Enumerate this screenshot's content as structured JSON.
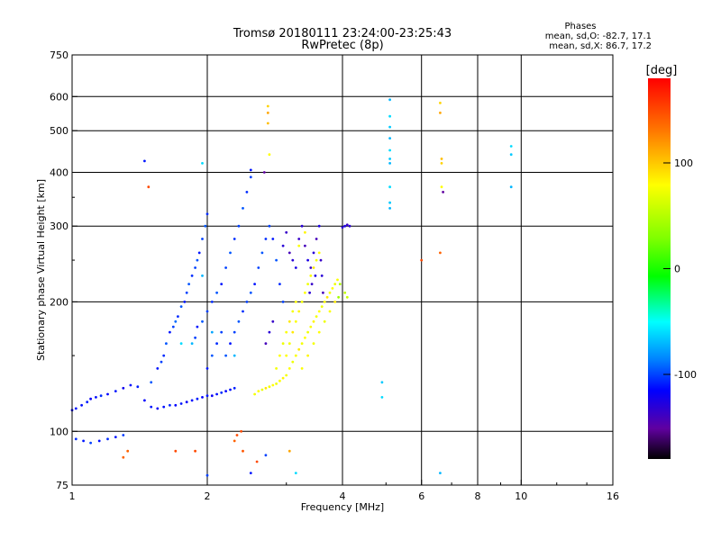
{
  "chart_data": {
    "type": "scatter",
    "title": "Tromsø 20180111 23:24:00-23:25:43",
    "subtitle": "RwPretec (8p)",
    "xlabel": "Frequency [MHz]",
    "ylabel": "Stationary phase Virtual Height [km]",
    "x_scale": "log",
    "y_scale": "log",
    "xlim": [
      1,
      16
    ],
    "ylim": [
      75,
      750
    ],
    "grid": true,
    "x_ticks": [
      1,
      2,
      4,
      6,
      8,
      10,
      16
    ],
    "x_tick_labels": [
      "1",
      "2",
      "4",
      "6",
      "8",
      "10",
      "16"
    ],
    "y_ticks": [
      75,
      100,
      200,
      300,
      400,
      500,
      600,
      750
    ],
    "y_tick_labels": [
      "75",
      "100",
      "200",
      "300",
      "400",
      "500",
      "600",
      "750"
    ],
    "legend_title": "Phases",
    "legend_lines": [
      "mean, sd,O: -82.7, 17.1",
      "mean, sd,X:  86.7, 17.2"
    ],
    "colorbar": {
      "label": "[deg]",
      "range": [
        -180,
        180
      ],
      "tick_values": [
        100,
        0,
        -100
      ],
      "tick_labels": [
        "100",
        "0",
        "-100"
      ]
    },
    "series": [
      {
        "points": [
          [
            1.0,
            112,
            -115
          ],
          [
            1.02,
            113,
            -110
          ],
          [
            1.05,
            115,
            -112
          ],
          [
            1.08,
            117,
            -108
          ],
          [
            1.1,
            119,
            -118
          ],
          [
            1.13,
            120,
            -112
          ],
          [
            1.16,
            121,
            -105
          ],
          [
            1.2,
            122,
            -115
          ],
          [
            1.25,
            124,
            -110
          ],
          [
            1.3,
            126,
            -120
          ],
          [
            1.35,
            128,
            -112
          ],
          [
            1.4,
            127,
            -108
          ],
          [
            1.45,
            118,
            -115
          ],
          [
            1.5,
            114,
            -110
          ],
          [
            1.55,
            113,
            -118
          ],
          [
            1.6,
            114,
            -112
          ],
          [
            1.65,
            115,
            -106
          ],
          [
            1.7,
            115,
            -115
          ],
          [
            1.75,
            116,
            -110
          ],
          [
            1.8,
            117,
            -118
          ],
          [
            1.85,
            118,
            -112
          ],
          [
            1.9,
            119,
            -108
          ],
          [
            1.95,
            120,
            -115
          ],
          [
            2.0,
            121,
            -110
          ],
          [
            2.05,
            121,
            -118
          ],
          [
            2.1,
            122,
            -112
          ],
          [
            2.15,
            123,
            -105
          ],
          [
            2.2,
            124,
            -115
          ],
          [
            2.25,
            125,
            -112
          ],
          [
            2.3,
            126,
            -108
          ],
          [
            1.02,
            96,
            -105
          ],
          [
            1.06,
            95,
            -110
          ],
          [
            1.1,
            94,
            -100
          ],
          [
            1.15,
            95,
            -112
          ],
          [
            1.2,
            96,
            -105
          ],
          [
            1.25,
            97,
            -110
          ],
          [
            1.3,
            98,
            -102
          ]
        ]
      },
      {
        "points": [
          [
            1.5,
            130,
            -95
          ],
          [
            1.55,
            140,
            -110
          ],
          [
            1.58,
            145,
            -100
          ],
          [
            1.6,
            150,
            -105
          ],
          [
            1.62,
            160,
            -95
          ],
          [
            1.65,
            170,
            -110
          ],
          [
            1.68,
            175,
            -100
          ],
          [
            1.7,
            180,
            -90
          ],
          [
            1.72,
            185,
            -105
          ],
          [
            1.75,
            195,
            -95
          ],
          [
            1.78,
            200,
            -110
          ],
          [
            1.8,
            210,
            -100
          ],
          [
            1.82,
            220,
            -95
          ],
          [
            1.85,
            230,
            -105
          ],
          [
            1.88,
            240,
            -100
          ],
          [
            1.9,
            250,
            -95
          ],
          [
            1.92,
            260,
            -110
          ],
          [
            1.95,
            280,
            -100
          ],
          [
            1.98,
            300,
            -95
          ],
          [
            2.0,
            320,
            -105
          ],
          [
            1.85,
            160,
            -70
          ],
          [
            1.88,
            165,
            -100
          ],
          [
            1.9,
            175,
            -110
          ],
          [
            1.95,
            180,
            -95
          ],
          [
            2.0,
            190,
            -100
          ],
          [
            2.05,
            200,
            -105
          ],
          [
            2.1,
            210,
            -95
          ],
          [
            2.15,
            220,
            -110
          ],
          [
            2.2,
            240,
            -100
          ],
          [
            2.25,
            260,
            -95
          ],
          [
            2.3,
            280,
            -105
          ],
          [
            2.35,
            300,
            -100
          ],
          [
            2.4,
            330,
            -95
          ],
          [
            2.45,
            360,
            -105
          ],
          [
            2.5,
            390,
            -100
          ],
          [
            2.0,
            140,
            -110
          ],
          [
            2.05,
            150,
            -95
          ],
          [
            2.1,
            160,
            -105
          ],
          [
            2.15,
            170,
            -100
          ],
          [
            2.2,
            150,
            -95
          ],
          [
            2.25,
            160,
            -110
          ],
          [
            2.3,
            170,
            -100
          ],
          [
            2.35,
            180,
            -95
          ],
          [
            2.4,
            190,
            -105
          ],
          [
            2.45,
            200,
            -100
          ],
          [
            2.5,
            210,
            -95
          ],
          [
            2.55,
            220,
            -110
          ],
          [
            2.6,
            240,
            -100
          ],
          [
            2.65,
            260,
            -95
          ],
          [
            2.7,
            280,
            -105
          ],
          [
            2.75,
            300,
            -100
          ],
          [
            2.8,
            280,
            -110
          ],
          [
            2.85,
            250,
            -95
          ],
          [
            2.9,
            220,
            -105
          ],
          [
            2.95,
            200,
            -100
          ],
          [
            1.95,
            230,
            -70
          ],
          [
            2.05,
            170,
            -75
          ],
          [
            1.75,
            160,
            -60
          ],
          [
            2.3,
            150,
            -70
          ]
        ]
      },
      {
        "points": [
          [
            2.95,
            270,
            -130
          ],
          [
            3.0,
            290,
            -135
          ],
          [
            3.05,
            260,
            -140
          ],
          [
            3.1,
            250,
            -130
          ],
          [
            3.15,
            240,
            -125
          ],
          [
            3.2,
            280,
            -135
          ],
          [
            3.25,
            300,
            -130
          ],
          [
            3.3,
            270,
            -140
          ],
          [
            3.35,
            250,
            -125
          ],
          [
            3.4,
            240,
            -135
          ],
          [
            3.45,
            260,
            -130
          ],
          [
            3.5,
            280,
            -140
          ],
          [
            3.55,
            300,
            -125
          ],
          [
            3.58,
            250,
            -135
          ],
          [
            3.6,
            230,
            -130
          ],
          [
            3.62,
            210,
            -140
          ],
          [
            3.48,
            230,
            -125
          ],
          [
            3.42,
            220,
            -135
          ],
          [
            3.38,
            210,
            -130
          ],
          [
            4.0,
            298,
            -130
          ],
          [
            4.05,
            300,
            -125
          ],
          [
            4.1,
            302,
            -135
          ],
          [
            4.15,
            300,
            -130
          ],
          [
            2.7,
            160,
            -140
          ],
          [
            2.75,
            170,
            -130
          ],
          [
            2.8,
            180,
            -135
          ]
        ]
      },
      {
        "points": [
          [
            2.55,
            122,
            95
          ],
          [
            2.6,
            124,
            100
          ],
          [
            2.65,
            125,
            90
          ],
          [
            2.7,
            126,
            105
          ],
          [
            2.75,
            127,
            95
          ],
          [
            2.8,
            128,
            100
          ],
          [
            2.85,
            129,
            92
          ],
          [
            2.9,
            131,
            98
          ],
          [
            2.95,
            133,
            102
          ],
          [
            3.0,
            135,
            95
          ],
          [
            3.05,
            140,
            100
          ],
          [
            3.1,
            145,
            92
          ],
          [
            3.15,
            150,
            98
          ],
          [
            3.2,
            155,
            105
          ],
          [
            3.25,
            160,
            95
          ],
          [
            3.3,
            165,
            100
          ],
          [
            3.35,
            170,
            92
          ],
          [
            3.4,
            175,
            98
          ],
          [
            3.45,
            180,
            102
          ],
          [
            3.5,
            185,
            95
          ],
          [
            3.55,
            190,
            100
          ],
          [
            3.6,
            195,
            92
          ],
          [
            3.65,
            200,
            98
          ],
          [
            3.7,
            205,
            105
          ],
          [
            3.75,
            210,
            95
          ],
          [
            3.8,
            215,
            100
          ],
          [
            3.85,
            220,
            92
          ],
          [
            3.9,
            225,
            98
          ],
          [
            3.0,
            150,
            100
          ],
          [
            3.05,
            160,
            95
          ],
          [
            3.1,
            170,
            105
          ],
          [
            3.15,
            180,
            98
          ],
          [
            3.2,
            190,
            102
          ],
          [
            3.25,
            200,
            95
          ],
          [
            3.3,
            210,
            100
          ],
          [
            3.35,
            220,
            92
          ],
          [
            3.4,
            230,
            98
          ],
          [
            3.45,
            240,
            105
          ],
          [
            3.5,
            250,
            95
          ],
          [
            3.55,
            260,
            100
          ],
          [
            3.2,
            270,
            98
          ],
          [
            3.3,
            290,
            102
          ],
          [
            2.85,
            140,
            95
          ],
          [
            2.9,
            150,
            100
          ],
          [
            2.95,
            160,
            92
          ],
          [
            3.0,
            170,
            98
          ],
          [
            3.05,
            180,
            105
          ],
          [
            3.1,
            190,
            95
          ],
          [
            3.15,
            200,
            100
          ],
          [
            3.25,
            140,
            98
          ],
          [
            3.35,
            150,
            102
          ],
          [
            3.45,
            160,
            95
          ],
          [
            3.55,
            170,
            100
          ],
          [
            3.65,
            180,
            92
          ],
          [
            3.75,
            190,
            98
          ],
          [
            3.85,
            200,
            105
          ],
          [
            4.05,
            210,
            70
          ],
          [
            4.1,
            205,
            75
          ],
          [
            3.95,
            220,
            60
          ],
          [
            3.92,
            205,
            55
          ]
        ]
      },
      {
        "points": [
          [
            5.1,
            590,
            -70
          ],
          [
            5.1,
            540,
            -60
          ],
          [
            5.1,
            510,
            -65
          ],
          [
            5.1,
            480,
            -70
          ],
          [
            5.1,
            450,
            -60
          ],
          [
            5.1,
            430,
            -65
          ],
          [
            5.1,
            420,
            -70
          ],
          [
            5.1,
            370,
            -60
          ],
          [
            5.1,
            340,
            -65
          ],
          [
            5.1,
            330,
            -70
          ],
          [
            9.5,
            460,
            -60
          ],
          [
            9.5,
            440,
            -65
          ],
          [
            9.5,
            370,
            -70
          ],
          [
            6.6,
            80,
            -70
          ],
          [
            4.9,
            130,
            -65
          ],
          [
            4.9,
            120,
            -60
          ]
        ]
      },
      {
        "points": [
          [
            6.6,
            580,
            110
          ],
          [
            6.6,
            550,
            120
          ],
          [
            6.65,
            430,
            115
          ],
          [
            6.65,
            420,
            110
          ],
          [
            6.6,
            260,
            140
          ],
          [
            6.0,
            250,
            150
          ],
          [
            6.65,
            370,
            100
          ],
          [
            6.7,
            360,
            -150
          ],
          [
            2.73,
            570,
            110
          ],
          [
            2.73,
            550,
            120
          ],
          [
            2.73,
            520,
            115
          ],
          [
            2.75,
            440,
            100
          ],
          [
            2.68,
            400,
            -150
          ],
          [
            1.33,
            90,
            140
          ],
          [
            1.48,
            370,
            150
          ],
          [
            1.7,
            90,
            150
          ],
          [
            2.3,
            95,
            140
          ],
          [
            2.33,
            98,
            150
          ],
          [
            2.4,
            90,
            145
          ],
          [
            2.58,
            85,
            150
          ],
          [
            3.05,
            90,
            120
          ],
          [
            3.15,
            80,
            -60
          ],
          [
            2.5,
            80,
            -110
          ],
          [
            2.7,
            88,
            -100
          ],
          [
            2.0,
            79,
            -100
          ],
          [
            1.88,
            90,
            150
          ],
          [
            2.38,
            100,
            150
          ],
          [
            1.45,
            425,
            -110
          ],
          [
            1.95,
            420,
            -60
          ],
          [
            2.5,
            405,
            -110
          ],
          [
            1.3,
            87,
            140
          ]
        ]
      }
    ]
  }
}
